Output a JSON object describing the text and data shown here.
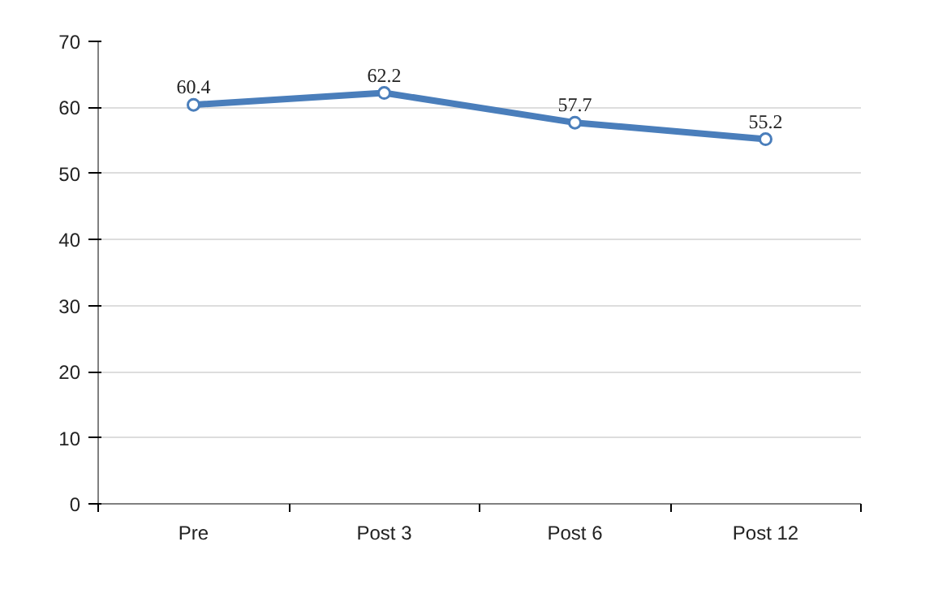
{
  "chart_data": {
    "type": "line",
    "categories": [
      "Pre",
      "Post 3",
      "Post 6",
      "Post 12"
    ],
    "series": [
      {
        "color": "#4a7ebb",
        "values": [
          60.4,
          62.2,
          57.7,
          55.2
        ]
      }
    ],
    "ylim": [
      0,
      70
    ],
    "yticks": [
      0,
      10,
      20,
      30,
      40,
      50,
      60,
      70
    ],
    "grid": "y",
    "marker": "circle",
    "line_style": "solid",
    "data_labels": true
  }
}
